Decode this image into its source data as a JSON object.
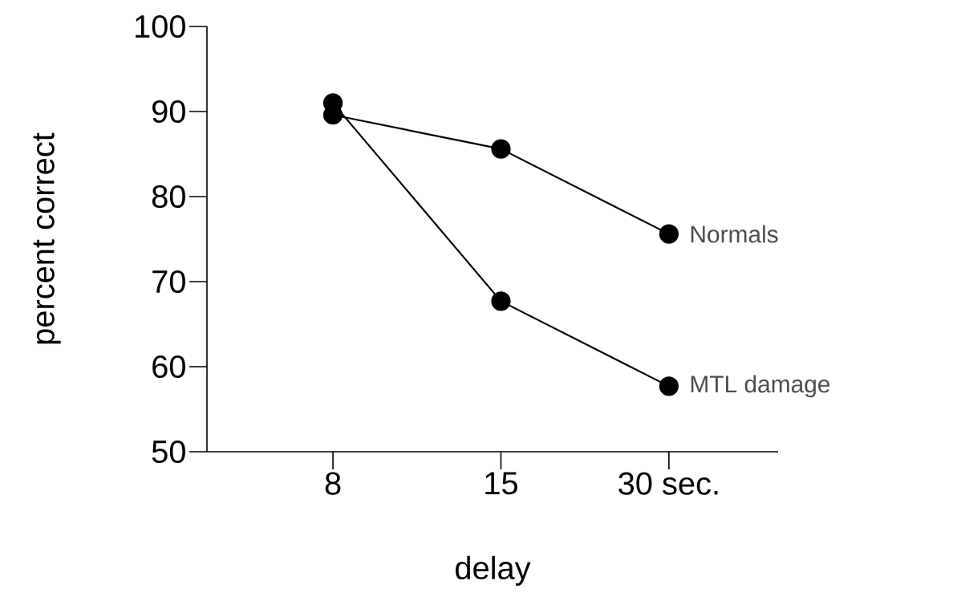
{
  "chart_data": {
    "type": "line",
    "xlabel": "delay",
    "ylabel": "percent correct",
    "categories": [
      "8",
      "15",
      "30 sec."
    ],
    "series": [
      {
        "name": "Normals",
        "color": "#000000",
        "values": [
          89.6,
          85.6,
          75.6
        ]
      },
      {
        "name": "MTL damage",
        "color": "#000000",
        "values": [
          91.0,
          67.7,
          57.7
        ]
      }
    ],
    "ylim": [
      50,
      100
    ],
    "yticks": [
      50,
      60,
      70,
      80,
      90,
      100
    ],
    "marker": "circle",
    "line_style": "solid",
    "grid": false,
    "legend": "right"
  }
}
